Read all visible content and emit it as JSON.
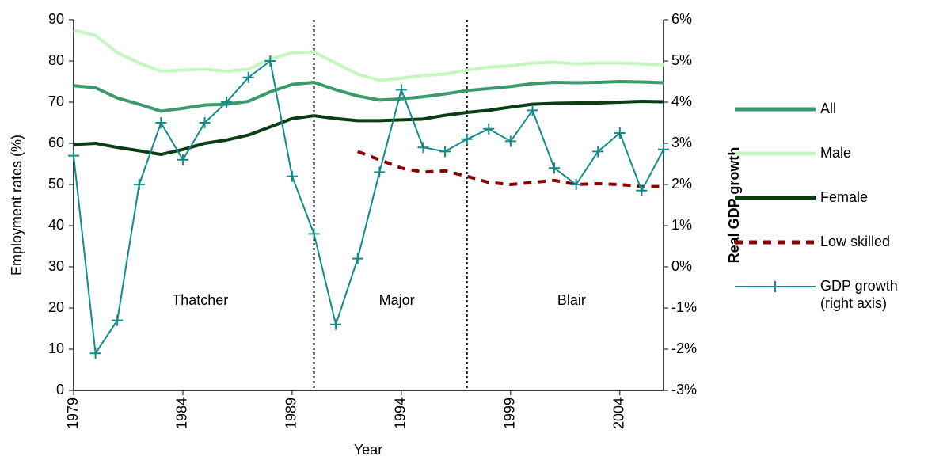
{
  "chart_data": {
    "type": "line",
    "x_label": "Year",
    "y_label": "Employment rates (%)",
    "y2_label": "Real GDP growth",
    "x": [
      1979,
      1980,
      1981,
      1982,
      1983,
      1984,
      1985,
      1986,
      1987,
      1988,
      1989,
      1990,
      1991,
      1992,
      1993,
      1994,
      1995,
      1996,
      1997,
      1998,
      1999,
      2000,
      2001,
      2002,
      2003,
      2004,
      2005,
      2006
    ],
    "xlim": [
      1979,
      2006
    ],
    "xticks": [
      1979,
      1984,
      1989,
      1994,
      1999,
      2004
    ],
    "ylim": [
      0,
      90
    ],
    "yticks": [
      0,
      10,
      20,
      30,
      40,
      50,
      60,
      70,
      80,
      90
    ],
    "y2lim": [
      -3,
      6
    ],
    "y2ticks": [
      {
        "value": -3,
        "label": "-3%"
      },
      {
        "value": -2,
        "label": "-2%"
      },
      {
        "value": -1,
        "label": "-1%"
      },
      {
        "value": 0,
        "label": "0%"
      },
      {
        "value": 1,
        "label": "1%"
      },
      {
        "value": 2,
        "label": "2%"
      },
      {
        "value": 3,
        "label": "3%"
      },
      {
        "value": 4,
        "label": "4%"
      },
      {
        "value": 5,
        "label": "5%"
      },
      {
        "value": 6,
        "label": "6%"
      }
    ],
    "legend": "right",
    "dividers": [
      1990,
      1997
    ],
    "annotations": [
      "Thatcher",
      "Major",
      "Blair"
    ],
    "series": [
      {
        "name": "All",
        "color": "#3a9a6c",
        "style": "solid",
        "values": [
          74,
          73.5,
          71,
          69.5,
          67.8,
          68.5,
          69.3,
          69.5,
          70.2,
          72.5,
          74.3,
          74.8,
          73,
          71.5,
          70.5,
          70.8,
          71.3,
          72,
          72.8,
          73.3,
          73.8,
          74.5,
          74.8,
          74.7,
          74.8,
          75,
          74.9,
          74.7
        ]
      },
      {
        "name": "Male",
        "color": "#c6f6c0",
        "style": "solid",
        "values": [
          87.5,
          86.2,
          82,
          79.5,
          77.5,
          77.8,
          78,
          77.5,
          78,
          80.5,
          82,
          82.2,
          79.5,
          76.8,
          75.3,
          75.8,
          76.5,
          76.8,
          77.8,
          78.5,
          78.8,
          79.5,
          79.7,
          79.3,
          79.5,
          79.5,
          79.3,
          79
        ]
      },
      {
        "name": "Female",
        "color": "#0b3d12",
        "style": "solid",
        "values": [
          59.7,
          60,
          59,
          58.2,
          57.3,
          58.5,
          60,
          60.8,
          62,
          64,
          66,
          66.7,
          66,
          65.5,
          65.5,
          65.7,
          65.9,
          66.8,
          67.5,
          68,
          68.8,
          69.5,
          69.7,
          69.8,
          69.8,
          70,
          70.2,
          70.1
        ]
      },
      {
        "name": "Low skilled",
        "color": "#8b0000",
        "style": "dashed",
        "values": [
          null,
          null,
          null,
          null,
          null,
          null,
          null,
          null,
          null,
          null,
          null,
          null,
          null,
          58,
          56,
          54,
          53,
          53.3,
          52,
          50.5,
          50,
          50.5,
          51,
          50,
          50.2,
          50,
          49.5,
          49.5
        ]
      },
      {
        "name": "GDP growth (right axis)",
        "color": "#138a8a",
        "style": "marker",
        "axis": "y2",
        "values": [
          2.7,
          -2.1,
          -1.3,
          2.0,
          3.5,
          2.6,
          3.5,
          4.0,
          4.6,
          5.0,
          2.2,
          0.8,
          -1.4,
          0.2,
          2.3,
          4.3,
          2.9,
          2.8,
          3.1,
          3.35,
          3.05,
          3.8,
          2.4,
          2.0,
          2.8,
          3.25,
          1.85,
          2.85
        ]
      }
    ]
  }
}
